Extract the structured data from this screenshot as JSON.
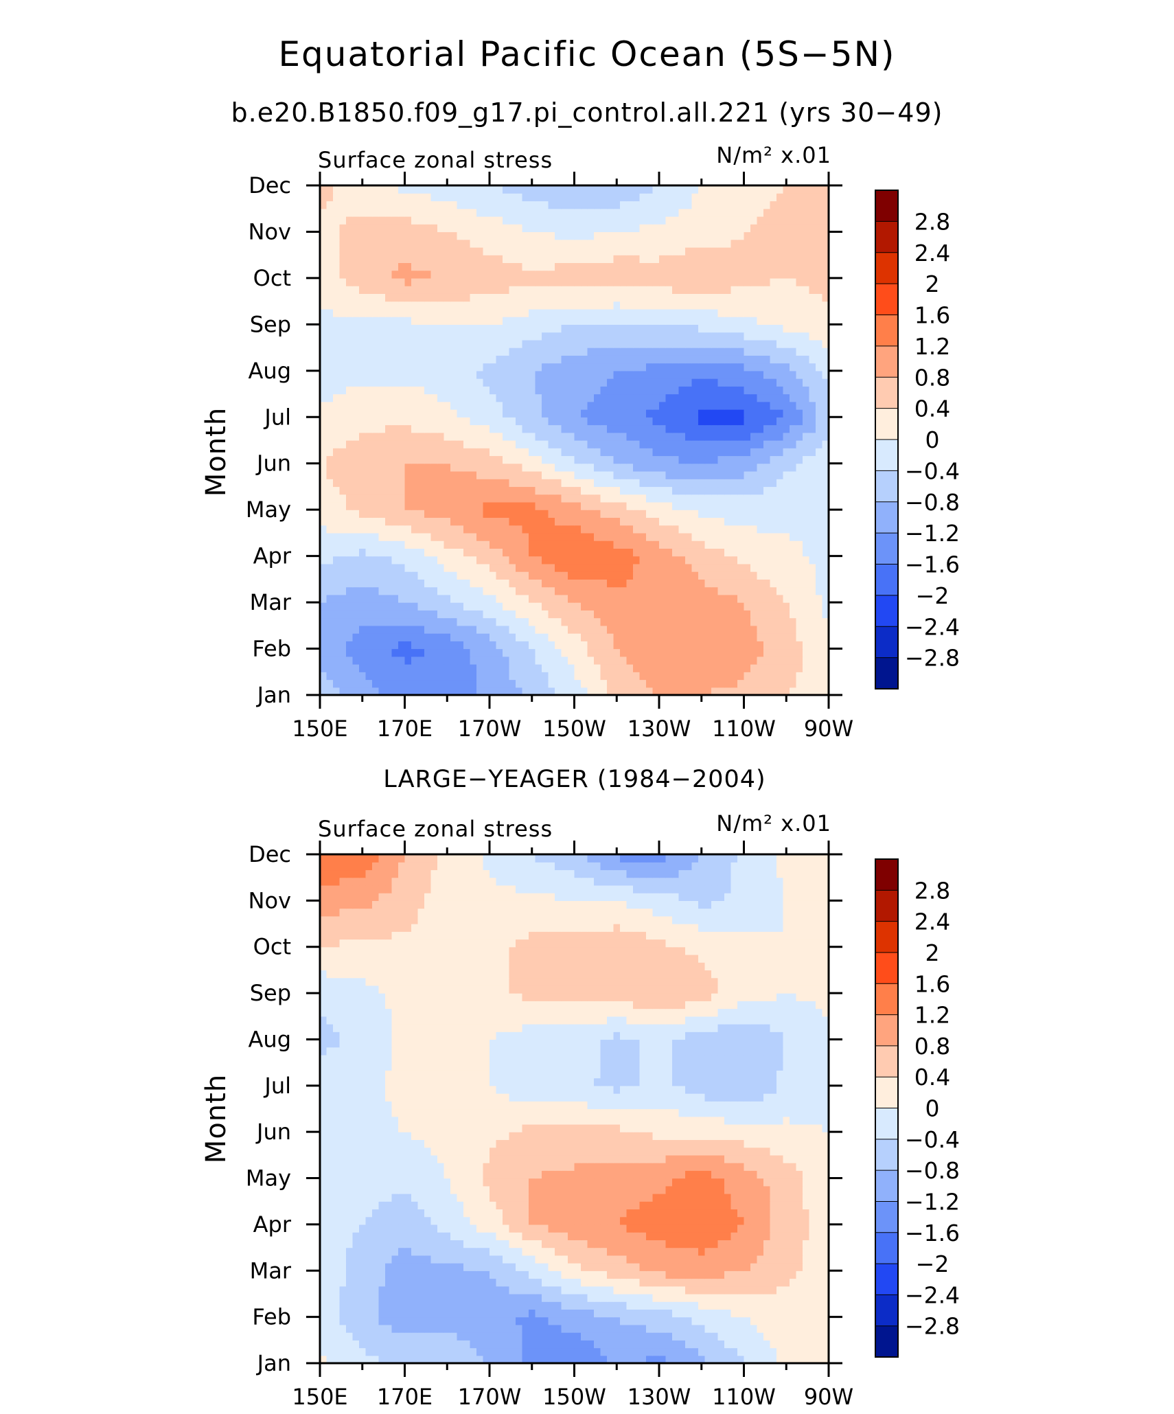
{
  "title": "Equatorial Pacific Ocean (5S−5N)",
  "subtitle": "b.e20.B1850.f09_g17.pi_control.all.221 (yrs 30−49)",
  "colorbar": {
    "levels": [
      "2.8",
      "2.4",
      "2",
      "1.6",
      "1.2",
      "0.8",
      "0.4",
      "0",
      "−0.4",
      "−0.8",
      "−1.2",
      "−1.6",
      "−2",
      "−2.4",
      "−2.8"
    ],
    "colors": [
      "#7f0000",
      "#b21800",
      "#dd3300",
      "#ff4d1a",
      "#ff7f4a",
      "#ffa47e",
      "#ffcbb1",
      "#ffeedd",
      "#d8eafe",
      "#b6d0fd",
      "#90b1fb",
      "#6c93f9",
      "#4872f7",
      "#2248f3",
      "#0c2cc7",
      "#00158f"
    ],
    "thresholds": [
      2.8,
      2.4,
      2.0,
      1.6,
      1.2,
      0.8,
      0.4,
      0,
      -0.4,
      -0.8,
      -1.2,
      -1.6,
      -2.0,
      -2.4,
      -2.8
    ]
  },
  "chart_data": [
    {
      "type": "heatmap",
      "panel_title": "",
      "left_label": "Surface zonal stress",
      "right_label": "N/m² x.01",
      "ylabel": "Month",
      "xlabel": "",
      "x_tick_labels": [
        "150E",
        "170E",
        "170W",
        "150W",
        "130W",
        "110W",
        "90W"
      ],
      "x": [
        150,
        160,
        170,
        180,
        190,
        200,
        210,
        220,
        230,
        240,
        250,
        260,
        270
      ],
      "y_tick_labels": [
        "Jan",
        "Feb",
        "Mar",
        "Apr",
        "May",
        "Jun",
        "Jul",
        "Aug",
        "Sep",
        "Oct",
        "Nov",
        "Dec"
      ],
      "z": [
        [
          -0.6,
          -1.0,
          -1.4,
          -1.4,
          -1.1,
          -0.7,
          -0.2,
          0.5,
          0.8,
          0.8,
          0.7,
          0.4,
          0.2
        ],
        [
          -0.9,
          -1.4,
          -1.7,
          -1.5,
          -1.0,
          -0.4,
          0.2,
          0.8,
          1.1,
          1.2,
          1.0,
          0.6,
          0.1
        ],
        [
          -0.8,
          -1.0,
          -0.8,
          -0.5,
          -0.1,
          0.4,
          0.8,
          1.1,
          1.2,
          1.0,
          0.8,
          0.4,
          -0.1
        ],
        [
          -0.3,
          -0.5,
          -0.3,
          0.2,
          0.6,
          1.2,
          1.6,
          1.4,
          1.0,
          0.6,
          0.3,
          0.1,
          -0.1
        ],
        [
          0.2,
          0.5,
          0.8,
          1.0,
          1.3,
          1.3,
          1.0,
          0.6,
          0.2,
          -0.1,
          -0.2,
          -0.1,
          -0.1
        ],
        [
          0.4,
          0.6,
          0.8,
          0.8,
          0.6,
          0.2,
          -0.3,
          -0.8,
          -1.1,
          -1.2,
          -1.0,
          -0.5,
          -0.1
        ],
        [
          0.1,
          0.3,
          0.3,
          0.1,
          -0.2,
          -0.7,
          -1.2,
          -1.4,
          -1.7,
          -2.1,
          -2.1,
          -1.6,
          -0.6
        ],
        [
          -0.3,
          -0.1,
          -0.1,
          -0.2,
          -0.5,
          -0.8,
          -1.0,
          -1.2,
          -1.3,
          -1.5,
          -1.3,
          -0.9,
          -0.3
        ],
        [
          -0.1,
          -0.1,
          -0.1,
          0.0,
          0.0,
          -0.2,
          -0.4,
          -0.5,
          -0.4,
          -0.3,
          -0.1,
          0.1,
          0.3
        ],
        [
          0.2,
          0.6,
          0.9,
          0.8,
          0.6,
          0.5,
          0.6,
          0.7,
          0.6,
          0.8,
          0.5,
          0.4,
          0.5
        ],
        [
          0.3,
          0.5,
          0.6,
          0.4,
          0.2,
          0.0,
          -0.1,
          0.0,
          0.1,
          0.2,
          0.4,
          0.6,
          0.6
        ],
        [
          0.5,
          0.2,
          -0.1,
          -0.2,
          -0.4,
          -0.6,
          -0.8,
          -0.7,
          -0.4,
          0.0,
          0.2,
          0.4,
          0.5
        ]
      ],
      "zlabel": "N/m² x.01"
    },
    {
      "type": "heatmap",
      "panel_title": "LARGE−YEAGER (1984−2004)",
      "left_label": "Surface zonal stress",
      "right_label": "N/m² x.01",
      "ylabel": "Month",
      "xlabel": "",
      "x_tick_labels": [
        "150E",
        "170E",
        "170W",
        "150W",
        "130W",
        "110W",
        "90W"
      ],
      "x": [
        150,
        160,
        170,
        180,
        190,
        200,
        210,
        220,
        230,
        240,
        250,
        260,
        270
      ],
      "y_tick_labels": [
        "Jan",
        "Feb",
        "Mar",
        "Apr",
        "May",
        "Jun",
        "Jul",
        "Aug",
        "Sep",
        "Oct",
        "Nov",
        "Dec"
      ],
      "z": [
        [
          0.1,
          -0.3,
          -0.5,
          -0.6,
          -0.8,
          -1.3,
          -1.6,
          -1.1,
          -1.3,
          -0.9,
          -0.4,
          0.1,
          0.2
        ],
        [
          -0.2,
          -0.7,
          -1.0,
          -0.9,
          -1.0,
          -1.3,
          -1.0,
          -0.8,
          -0.6,
          -0.3,
          0.0,
          0.2,
          0.2
        ],
        [
          -0.1,
          -0.6,
          -1.0,
          -0.9,
          -0.8,
          -0.3,
          0.3,
          0.6,
          0.9,
          1.0,
          0.8,
          0.5,
          0.2
        ],
        [
          -0.2,
          -0.4,
          -0.6,
          -0.3,
          0.2,
          0.8,
          1.0,
          1.2,
          1.4,
          1.5,
          1.2,
          0.6,
          0.2
        ],
        [
          -0.1,
          -0.3,
          -0.3,
          0.0,
          0.5,
          0.8,
          0.9,
          1.0,
          1.1,
          1.4,
          1.0,
          0.6,
          0.1
        ],
        [
          -0.1,
          -0.1,
          0.0,
          0.1,
          0.3,
          0.5,
          0.5,
          0.5,
          0.3,
          0.3,
          0.2,
          0.1,
          0.0
        ],
        [
          -0.2,
          -0.1,
          0.1,
          0.1,
          0.0,
          -0.3,
          -0.3,
          -0.5,
          -0.3,
          -0.6,
          -0.8,
          -0.3,
          -0.1
        ],
        [
          -0.5,
          -0.3,
          0.1,
          0.2,
          0.0,
          -0.2,
          -0.2,
          -0.5,
          -0.3,
          -0.6,
          -0.8,
          -0.4,
          -0.1
        ],
        [
          -0.3,
          -0.1,
          0.1,
          0.2,
          0.3,
          0.5,
          0.6,
          0.6,
          0.8,
          0.6,
          0.2,
          0.0,
          0.1
        ],
        [
          0.4,
          0.3,
          0.3,
          0.1,
          0.3,
          0.5,
          0.6,
          0.7,
          0.5,
          0.3,
          0.1,
          0.0,
          0.3
        ],
        [
          1.0,
          0.9,
          0.6,
          0.2,
          0.1,
          0.1,
          0.0,
          0.0,
          -0.2,
          -0.5,
          -0.3,
          0.0,
          0.2
        ],
        [
          1.6,
          1.5,
          0.8,
          0.3,
          -0.1,
          -0.4,
          -0.7,
          -1.3,
          -1.4,
          -0.8,
          -0.3,
          0.1,
          0.1
        ]
      ],
      "zlabel": "N/m² x.01"
    }
  ]
}
